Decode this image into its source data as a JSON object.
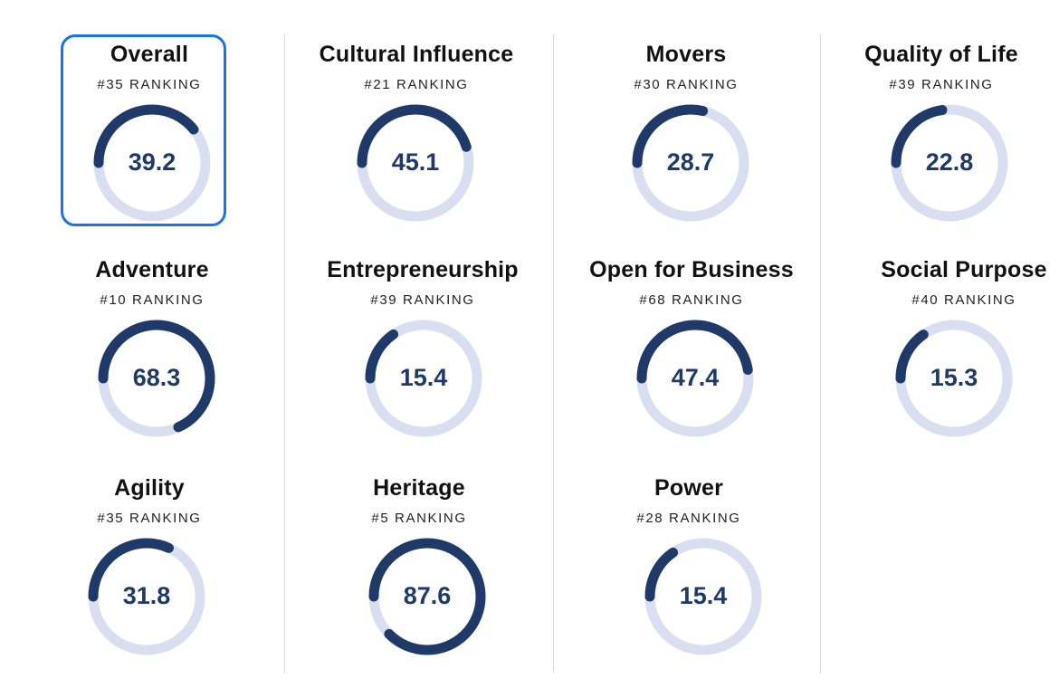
{
  "colors": {
    "arc": "#1f3a68",
    "track": "#d9dff0",
    "score": "#1f3a68",
    "selected_border": "#1a73e8"
  },
  "cards": [
    {
      "title": "Overall",
      "rank": "#35 RANKING",
      "score": "39.2",
      "fraction": 0.392,
      "selected": true
    },
    {
      "title": "Cultural Influence",
      "rank": "#21 RANKING",
      "score": "45.1",
      "fraction": 0.451,
      "selected": false
    },
    {
      "title": "Movers",
      "rank": "#30 RANKING",
      "score": "28.7",
      "fraction": 0.287,
      "selected": false
    },
    {
      "title": "Quality of Life",
      "rank": "#39 RANKING",
      "score": "22.8",
      "fraction": 0.228,
      "selected": false
    },
    {
      "title": "Adventure",
      "rank": "#10 RANKING",
      "score": "68.3",
      "fraction": 0.683,
      "selected": false
    },
    {
      "title": "Entrepreneurship",
      "rank": "#39 RANKING",
      "score": "15.4",
      "fraction": 0.154,
      "selected": false
    },
    {
      "title": "Open for Business",
      "rank": "#68 RANKING",
      "score": "47.4",
      "fraction": 0.474,
      "selected": false
    },
    {
      "title": "Social Purpose",
      "rank": "#40 RANKING",
      "score": "15.3",
      "fraction": 0.153,
      "selected": false
    },
    {
      "title": "Agility",
      "rank": "#35 RANKING",
      "score": "31.8",
      "fraction": 0.318,
      "selected": false
    },
    {
      "title": "Heritage",
      "rank": "#5 RANKING",
      "score": "87.6",
      "fraction": 0.876,
      "selected": false
    },
    {
      "title": "Power",
      "rank": "#28 RANKING",
      "score": "15.4",
      "fraction": 0.154,
      "selected": false
    }
  ]
}
